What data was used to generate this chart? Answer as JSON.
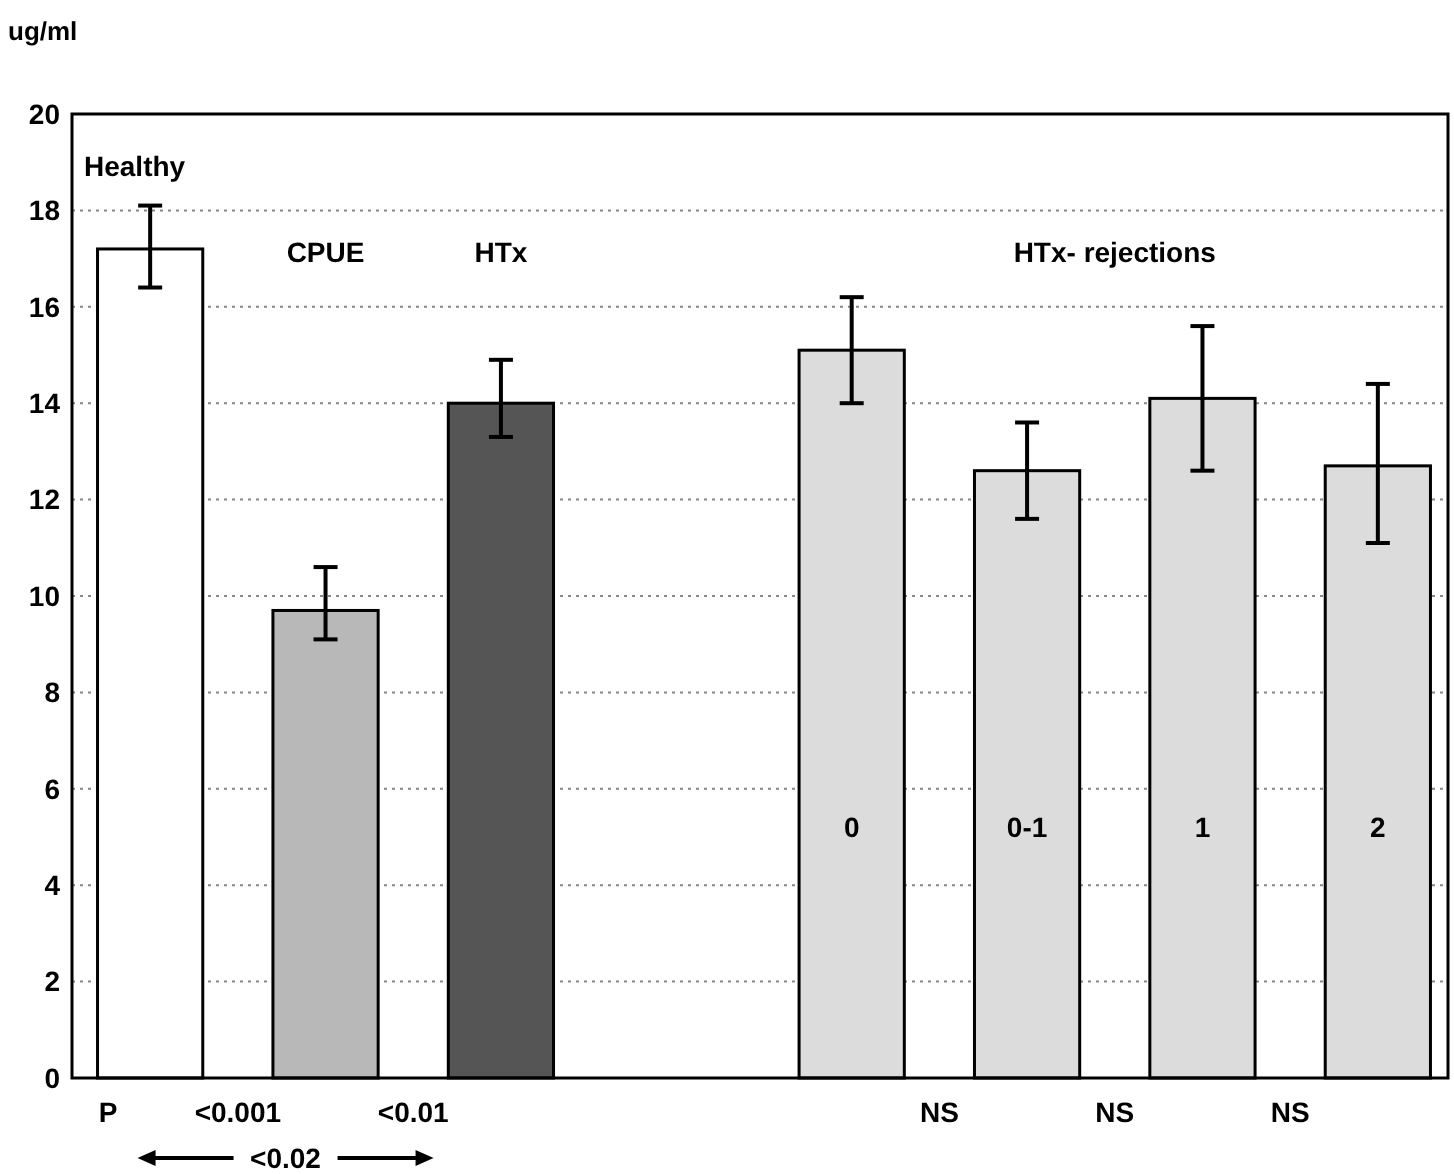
{
  "chart_data": {
    "type": "bar",
    "ylabel": "ug/ml",
    "categories": [
      "Healthy",
      "CPUE",
      "HTx",
      null,
      "0",
      "0-1",
      "1",
      "2"
    ],
    "values": [
      17.2,
      9.7,
      14.0,
      null,
      15.1,
      12.6,
      14.1,
      12.7
    ],
    "errors": [
      [
        16.4,
        18.1
      ],
      [
        9.1,
        10.6
      ],
      [
        13.3,
        14.9
      ],
      null,
      [
        14.0,
        16.2
      ],
      [
        11.6,
        13.6
      ],
      [
        12.6,
        15.6
      ],
      [
        11.1,
        14.4
      ]
    ],
    "colors": [
      "#ffffff",
      "#b8b8b8",
      "#555555",
      null,
      "#dcdcdc",
      "#dcdcdc",
      "#dcdcdc",
      "#dcdcdc"
    ],
    "ylim": [
      0,
      20
    ],
    "yticks": [
      0,
      2,
      4,
      6,
      8,
      10,
      12,
      14,
      16,
      18,
      20
    ],
    "grid": "y",
    "annotations": [
      "HTx- rejections",
      "P",
      "<0.001",
      "<0.01",
      "NS",
      "NS",
      "NS",
      "<0.02"
    ]
  }
}
